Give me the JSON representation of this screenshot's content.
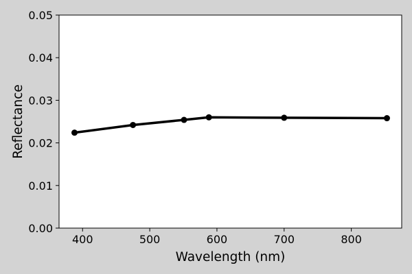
{
  "chart_data": {
    "type": "line",
    "title": "",
    "xlabel": "Wavelength (nm)",
    "ylabel": "Reflectance",
    "xlim": [
      365,
      875
    ],
    "ylim": [
      0.0,
      0.05
    ],
    "x_ticks": [
      400,
      500,
      600,
      700,
      800
    ],
    "x_tick_labels": [
      "400",
      "500",
      "600",
      "700",
      "800"
    ],
    "y_ticks": [
      0.0,
      0.01,
      0.02,
      0.03,
      0.04,
      0.05
    ],
    "y_tick_labels": [
      "0.00",
      "0.01",
      "0.02",
      "0.03",
      "0.04",
      "0.05"
    ],
    "grid": false,
    "series": [
      {
        "x": [
          388,
          475,
          551,
          588,
          700,
          853
        ],
        "y": [
          0.0224,
          0.0242,
          0.0254,
          0.026,
          0.0259,
          0.0258
        ],
        "color": "#000000",
        "marker": "circle"
      }
    ],
    "colors": {
      "figure_background": "#d3d3d3",
      "plot_background": "#ffffff",
      "line": "#000000"
    }
  }
}
